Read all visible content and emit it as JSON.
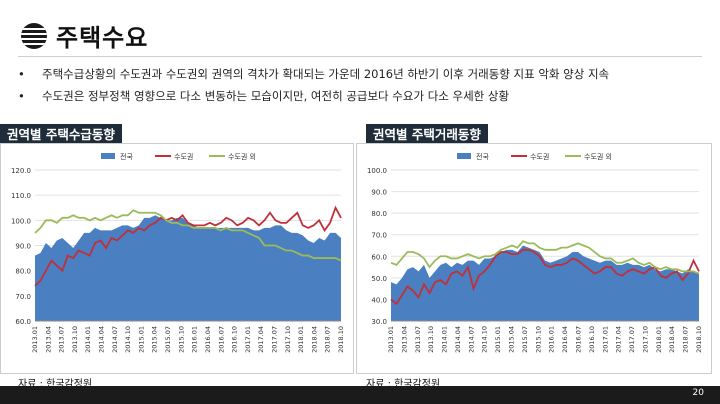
{
  "header": {
    "title": "주택수요",
    "logo_icon": "striped-globe-icon"
  },
  "bullets": [
    "주택수급상황의 수도권과 수도권외 권역의 격차가 확대되는 가운데 2016년 하반기 이후 거래동향 지표 악화 양상 지속",
    "수도권은 정부정책 영향으로 다소 변동하는 모습이지만, 여전히 공급보다 수요가 다소 우세한 상황"
  ],
  "colors": {
    "national": "#4a7fc1",
    "capital": "#c0303b",
    "noncapital": "#9bbb59",
    "panel_bg": "#1f2d3a"
  },
  "page_number": "20",
  "chart_data": [
    {
      "type": "area",
      "panel_title": "권역별 주택수급동향",
      "source": "자료 : 한국감정원",
      "legend_position": "top",
      "ylim": [
        60,
        120
      ],
      "yticks": [
        "60.0",
        "70.0",
        "80.0",
        "90.0",
        "100.0",
        "110.0",
        "120.0"
      ],
      "xticks": [
        "2013.01",
        "2013.04",
        "2013.07",
        "2013.10",
        "2014.01",
        "2014.04",
        "2014.07",
        "2014.10",
        "2015.01",
        "2015.04",
        "2015.07",
        "2015.10",
        "2016.01",
        "2016.04",
        "2016.07",
        "2016.10",
        "2017.01",
        "2017.04",
        "2017.07",
        "2017.10",
        "2018.01",
        "2018.04",
        "2018.07",
        "2018.10"
      ],
      "series": [
        {
          "name": "전국",
          "style": "area",
          "values": [
            86,
            87,
            91,
            89,
            92,
            93,
            91,
            89,
            92,
            95,
            95,
            97,
            96,
            96,
            96,
            97,
            98,
            98,
            97,
            98,
            101,
            101,
            102,
            101,
            100,
            100,
            101,
            101,
            99,
            98,
            97,
            97,
            97,
            97,
            97,
            97,
            97,
            97,
            97,
            97,
            96,
            96,
            97,
            97,
            98,
            98,
            96,
            95,
            95,
            94,
            92,
            91,
            93,
            92,
            95,
            95,
            93
          ]
        },
        {
          "name": "수도권",
          "style": "line",
          "values": [
            74,
            76,
            80,
            84,
            82,
            80,
            86,
            85,
            88,
            87,
            86,
            91,
            92,
            89,
            93,
            92,
            94,
            96,
            95,
            97,
            96,
            98,
            99,
            101,
            100,
            101,
            100,
            102,
            99,
            98,
            98,
            98,
            99,
            98,
            99,
            101,
            100,
            98,
            99,
            101,
            100,
            98,
            100,
            103,
            100,
            99,
            99,
            101,
            103,
            98,
            97,
            98,
            100,
            96,
            99,
            105,
            101
          ]
        },
        {
          "name": "수도권 외",
          "style": "line",
          "values": [
            95,
            97,
            100,
            100,
            99,
            101,
            101,
            102,
            101,
            101,
            100,
            101,
            100,
            101,
            102,
            101,
            102,
            102,
            104,
            103,
            103,
            103,
            103,
            102,
            100,
            99,
            99,
            98,
            98,
            97,
            97,
            97,
            97,
            97,
            96,
            97,
            96,
            96,
            96,
            95,
            94,
            93,
            90,
            90,
            90,
            89,
            88,
            88,
            87,
            86,
            86,
            85,
            85,
            85,
            85,
            85,
            84
          ]
        }
      ]
    },
    {
      "type": "area",
      "panel_title": "권역별 주택거래동향",
      "source": "자료 : 한국감정원",
      "legend_position": "top",
      "ylim": [
        30,
        100
      ],
      "yticks": [
        "30.0",
        "40.0",
        "50.0",
        "60.0",
        "70.0",
        "80.0",
        "90.0",
        "100.0"
      ],
      "xticks": [
        "2013.01",
        "2013.04",
        "2013.07",
        "2013.10",
        "2014.01",
        "2014.04",
        "2014.07",
        "2014.10",
        "2015.01",
        "2015.04",
        "2015.07",
        "2015.10",
        "2016.01",
        "2016.04",
        "2016.07",
        "2016.10",
        "2017.01",
        "2017.04",
        "2017.07",
        "2017.10",
        "2018.01",
        "2018.04",
        "2018.07",
        "2018.10"
      ],
      "series": [
        {
          "name": "전국",
          "style": "area",
          "values": [
            48,
            47,
            50,
            54,
            55,
            53,
            56,
            50,
            53,
            56,
            57,
            55,
            57,
            56,
            58,
            58,
            56,
            59,
            59,
            60,
            62,
            63,
            63,
            62,
            65,
            64,
            63,
            62,
            58,
            57,
            58,
            59,
            60,
            62,
            62,
            60,
            59,
            58,
            57,
            58,
            58,
            56,
            56,
            57,
            56,
            56,
            55,
            56,
            54,
            53,
            54,
            54,
            53,
            52,
            54,
            53,
            52
          ]
        },
        {
          "name": "수도권",
          "style": "line",
          "values": [
            40,
            38,
            42,
            46,
            44,
            41,
            47,
            43,
            48,
            49,
            47,
            52,
            53,
            51,
            55,
            45,
            51,
            53,
            56,
            60,
            62,
            62,
            61,
            61,
            63,
            63,
            62,
            60,
            56,
            55,
            56,
            56,
            57,
            59,
            58,
            56,
            54,
            52,
            53,
            55,
            55,
            52,
            51,
            53,
            54,
            53,
            52,
            54,
            55,
            51,
            50,
            52,
            53,
            49,
            52,
            58,
            53
          ]
        },
        {
          "name": "수도권 외",
          "style": "line",
          "values": [
            57,
            56,
            59,
            62,
            62,
            61,
            59,
            55,
            58,
            60,
            60,
            59,
            59,
            60,
            61,
            60,
            59,
            60,
            60,
            61,
            63,
            64,
            65,
            64,
            67,
            66,
            66,
            64,
            63,
            63,
            63,
            64,
            64,
            65,
            66,
            65,
            64,
            62,
            60,
            59,
            59,
            57,
            57,
            58,
            59,
            57,
            56,
            57,
            55,
            54,
            55,
            54,
            54,
            53,
            53,
            53,
            52
          ]
        }
      ]
    }
  ]
}
